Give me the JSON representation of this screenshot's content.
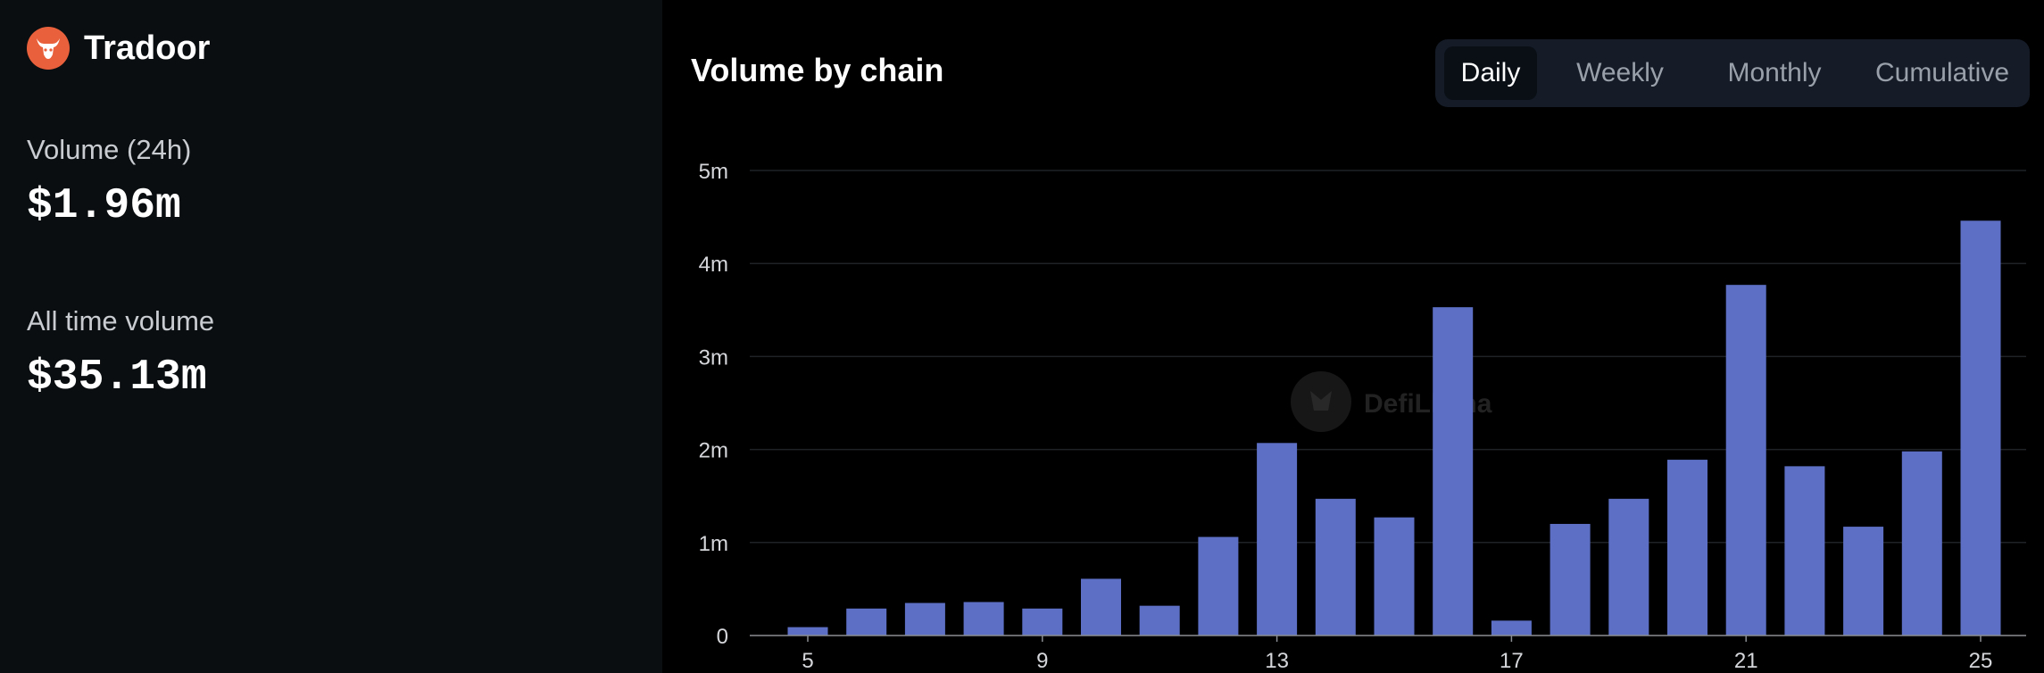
{
  "brand": {
    "name": "Tradoor",
    "icon": "bull-icon",
    "color": "#e8613c"
  },
  "stats": [
    {
      "label": "Volume (24h)",
      "value": "$1.96m"
    },
    {
      "label": "All time volume",
      "value": "$35.13m"
    }
  ],
  "chart_header": {
    "title": "Volume by chain",
    "tabs": [
      "Daily",
      "Weekly",
      "Monthly",
      "Cumulative"
    ],
    "active_tab": "Daily"
  },
  "watermark": {
    "text": "DefiLlama"
  },
  "chart_data": {
    "type": "bar",
    "title": "Volume by chain",
    "xlabel": "",
    "ylabel": "",
    "x": [
      5,
      6,
      7,
      8,
      9,
      10,
      11,
      12,
      13,
      14,
      15,
      16,
      17,
      18,
      19,
      20,
      21,
      22,
      23,
      24,
      25
    ],
    "values": [
      90000,
      290000,
      350000,
      360000,
      290000,
      610000,
      320000,
      1060000,
      2070000,
      1470000,
      1270000,
      3530000,
      160000,
      1200000,
      1470000,
      1890000,
      3770000,
      1820000,
      1170000,
      1980000,
      4460000
    ],
    "ylim": [
      0,
      5000000
    ],
    "y_ticks": [
      {
        "value": 0,
        "label": "0"
      },
      {
        "value": 1000000,
        "label": "1m"
      },
      {
        "value": 2000000,
        "label": "2m"
      },
      {
        "value": 3000000,
        "label": "3m"
      },
      {
        "value": 4000000,
        "label": "4m"
      },
      {
        "value": 5000000,
        "label": "5m"
      }
    ],
    "x_ticks": [
      5,
      9,
      13,
      17,
      21,
      25
    ],
    "bar_color": "#5c6fc4",
    "grid": true
  }
}
